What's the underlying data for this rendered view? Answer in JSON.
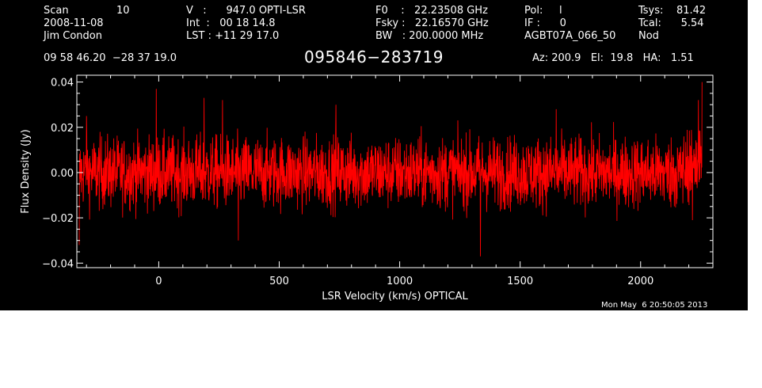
{
  "header": {
    "scan_label": "Scan",
    "scan_value": "10",
    "date": "2008-11-08",
    "observer": "Jim Condon",
    "velocity_line": "V   :      947.0 OPTI-LSR",
    "int_line": "Int  :   00 18 14.8",
    "lst_line": "LST : +11 29 17.0",
    "f0_line": "F0    :   22.23508 GHz",
    "fsky_line": "Fsky :   22.16570 GHz",
    "bw_line": "BW   : 200.0000 MHz",
    "pol_line": "Pol:     l",
    "if_line": "IF :      0",
    "project": "AGBT07A_066_50",
    "tsys_line": "Tsys:    81.42",
    "tcal_line": "Tcal:      5.54",
    "proc": "Nod",
    "coords": "09 58 46.20  −28 37 19.0",
    "source": "095846−283719",
    "az_el_ha": "Az: 200.9   El:  19.8   HA:   1.51",
    "timestamp": "Mon May  6 20:50:05 2013"
  },
  "chart_data": {
    "type": "line",
    "xlabel": "LSR Velocity (km/s) OPTICAL",
    "ylabel": "Flux Density (Jy)",
    "xlim": [
      -340,
      2300
    ],
    "ylim": [
      -0.042,
      0.043
    ],
    "x_ticks": [
      0,
      500,
      1000,
      1500,
      2000
    ],
    "x_tick_labels": [
      "0",
      "500",
      "1000",
      "1500",
      "2000"
    ],
    "y_ticks": [
      -0.04,
      -0.02,
      0.0,
      0.02,
      0.04
    ],
    "y_tick_labels": [
      "−0.04",
      "−0.02",
      "0.00",
      "0.02",
      "0.04"
    ],
    "series": [
      {
        "color": "#ff0000",
        "x_start": -330,
        "x_end": 2255,
        "baseline": 0.0,
        "noise_rms": 0.008,
        "notable_points": [
          {
            "x": -330,
            "y": -0.032
          },
          {
            "x": -300,
            "y": 0.025
          },
          {
            "x": -10,
            "y": 0.037
          },
          {
            "x": 188,
            "y": 0.033
          },
          {
            "x": 265,
            "y": 0.032
          },
          {
            "x": 330,
            "y": -0.03
          },
          {
            "x": 735,
            "y": 0.03
          },
          {
            "x": 1335,
            "y": -0.037
          },
          {
            "x": 1650,
            "y": 0.028
          },
          {
            "x": 2215,
            "y": -0.021
          },
          {
            "x": 2240,
            "y": 0.032
          },
          {
            "x": 2255,
            "y": 0.04
          }
        ]
      }
    ]
  },
  "colors": {
    "background": "#000000",
    "foreground": "#ffffff",
    "trace": "#ff0000"
  }
}
